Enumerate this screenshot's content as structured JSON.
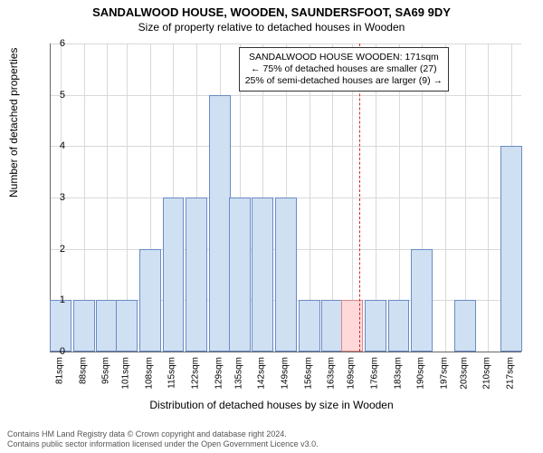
{
  "title": "SANDALWOOD HOUSE, WOODEN, SAUNDERSFOOT, SA69 9DY",
  "subtitle": "Size of property relative to detached houses in Wooden",
  "ylabel": "Number of detached properties",
  "xlabel": "Distribution of detached houses by size in Wooden",
  "chart": {
    "type": "bar",
    "ylim": [
      0,
      6
    ],
    "ytick_step": 1,
    "xlim": [
      78,
      220
    ],
    "categories": [
      81,
      88,
      95,
      101,
      108,
      115,
      122,
      129,
      135,
      142,
      149,
      156,
      163,
      169,
      176,
      183,
      190,
      197,
      203,
      210,
      217
    ],
    "values": [
      1,
      1,
      1,
      1,
      2,
      3,
      3,
      5,
      3,
      3,
      3,
      1,
      1,
      1,
      1,
      1,
      2,
      0,
      1,
      0,
      4
    ],
    "bar_color": "#cfe0f3",
    "bar_border": "#6b8bc4",
    "bar_width_units": 6.5,
    "highlight_color": "#ffd9d9",
    "highlight_border": "#d98888",
    "grid_color": "#d9d9d9",
    "axis_label_fontsize": 12,
    "tick_fontsize": 11,
    "xcat_unit": "sqm",
    "reference_x": 171,
    "reference_color": "#d02828"
  },
  "annotation": {
    "line1": "SANDALWOOD HOUSE WOODEN: 171sqm",
    "line2": "← 75% of detached houses are smaller (27)",
    "line3": "25% of semi-detached houses are larger (9) →"
  },
  "footer": {
    "line1": "Contains HM Land Registry data © Crown copyright and database right 2024.",
    "line2": "Contains public sector information licensed under the Open Government Licence v3.0."
  }
}
